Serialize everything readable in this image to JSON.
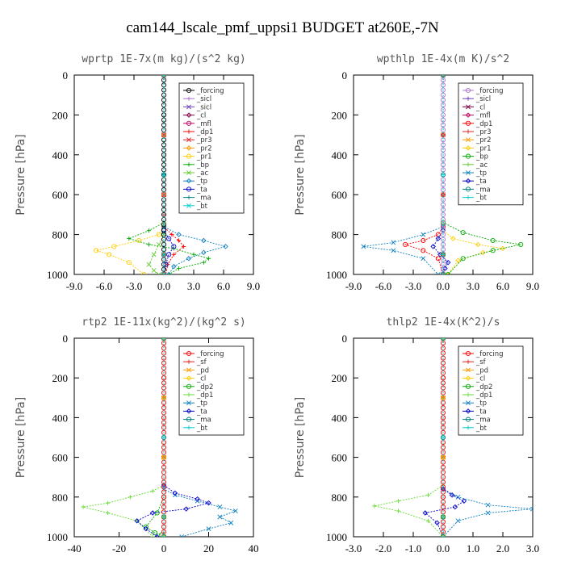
{
  "figure": {
    "title": "cam144_lscale_pmf_uppsi1  BUDGET at260E,-7N"
  },
  "chart_data": [
    {
      "type": "line",
      "title": "wprtp  1E-7x(m kg)/(s^2 kg)",
      "ylabel": "Pressure [hPa]",
      "xlim": [
        -9,
        9
      ],
      "ylim": [
        1000,
        0
      ],
      "xticks": [
        "-9.0",
        "-6.0",
        "-3.0",
        "0.0",
        "3.0",
        "6.0",
        "9.0"
      ],
      "xtick_values": [
        -9,
        -6,
        -3,
        0,
        3,
        6,
        9
      ],
      "yticks": [
        "0",
        "200",
        "400",
        "600",
        "800",
        "1000"
      ],
      "ytick_values": [
        0,
        200,
        400,
        600,
        800,
        1000
      ],
      "legend_position": "top-right",
      "series": [
        {
          "name": "_forcing",
          "color": "#000000",
          "x": [
            0,
            0,
            0,
            0,
            0,
            0,
            0
          ],
          "y": [
            0,
            200,
            400,
            600,
            800,
            900,
            1000
          ]
        },
        {
          "name": "_sicl",
          "color": "#b070d0",
          "x": [
            0,
            0,
            0,
            0,
            0
          ],
          "y": [
            0,
            300,
            600,
            900,
            1000
          ]
        },
        {
          "name": "_sicl",
          "color": "#7040c0",
          "x": [
            0,
            0,
            0,
            0,
            0
          ],
          "y": [
            0,
            300,
            600,
            900,
            1000
          ]
        },
        {
          "name": "_cl",
          "color": "#800040",
          "x": [
            0,
            0,
            0,
            0,
            0
          ],
          "y": [
            0,
            300,
            600,
            900,
            1000
          ]
        },
        {
          "name": "_mfl",
          "color": "#c00060",
          "x": [
            0,
            0,
            0,
            0,
            0
          ],
          "y": [
            0,
            300,
            600,
            900,
            1000
          ]
        },
        {
          "name": "_dp1",
          "color": "#ff0000",
          "x": [
            0,
            0,
            0,
            0.8,
            1.5,
            2.0,
            1.0,
            0.4,
            0.2
          ],
          "y": [
            0,
            700,
            760,
            800,
            830,
            860,
            900,
            950,
            1000
          ]
        },
        {
          "name": "_pr3",
          "color": "#e02020",
          "x": [
            0,
            0,
            0,
            0,
            0
          ],
          "y": [
            0,
            300,
            600,
            900,
            1000
          ]
        },
        {
          "name": "_pr2",
          "color": "#ff9900",
          "x": [
            0,
            0,
            0,
            0,
            0
          ],
          "y": [
            0,
            300,
            600,
            900,
            1000
          ]
        },
        {
          "name": "_pr1",
          "color": "#ffcc00",
          "x": [
            0,
            0,
            -0.5,
            -2.5,
            -5.0,
            -6.8,
            -5.5,
            -3.5,
            -2.0
          ],
          "y": [
            0,
            760,
            800,
            830,
            860,
            880,
            900,
            940,
            1000
          ]
        },
        {
          "name": "_bp",
          "color": "#00aa00",
          "x": [
            0,
            0,
            -1.5,
            -3.5,
            -1.5,
            1.0,
            3.0,
            4.5,
            4.0,
            1.5,
            0.5
          ],
          "y": [
            0,
            740,
            780,
            820,
            850,
            870,
            900,
            920,
            940,
            970,
            1000
          ]
        },
        {
          "name": "_ac",
          "color": "#66cc33",
          "x": [
            0,
            0,
            -0.5,
            -1.0,
            -1.5,
            -1.0,
            -0.5
          ],
          "y": [
            0,
            800,
            850,
            900,
            950,
            980,
            1000
          ]
        },
        {
          "name": "_tp",
          "color": "#1080c0",
          "x": [
            0,
            0,
            1.5,
            4.0,
            6.2,
            4.0,
            2.5,
            1.0,
            0.5
          ],
          "y": [
            0,
            760,
            800,
            830,
            860,
            890,
            920,
            960,
            1000
          ]
        },
        {
          "name": "_ta",
          "color": "#0000cc",
          "x": [
            0,
            0,
            0.5,
            1.0,
            0.5,
            0.2,
            0
          ],
          "y": [
            0,
            780,
            820,
            860,
            900,
            950,
            1000
          ]
        },
        {
          "name": "_ma",
          "color": "#008080",
          "x": [
            0,
            0,
            0,
            0
          ],
          "y": [
            0,
            500,
            900,
            1000
          ]
        },
        {
          "name": "_bt",
          "color": "#00cccc",
          "x": [
            0,
            0,
            0,
            0
          ],
          "y": [
            0,
            500,
            900,
            1000
          ]
        }
      ]
    },
    {
      "type": "line",
      "title": "wpthlp  1E-4x(m K)/s^2",
      "ylabel": "Pressure [hPa]",
      "xlim": [
        -9,
        9
      ],
      "ylim": [
        1000,
        0
      ],
      "xticks": [
        "-9.0",
        "-6.0",
        "-3.0",
        "0.0",
        "3.0",
        "6.0",
        "9.0"
      ],
      "xtick_values": [
        -9,
        -6,
        -3,
        0,
        3,
        6,
        9
      ],
      "yticks": [
        "0",
        "200",
        "400",
        "600",
        "800",
        "1000"
      ],
      "ytick_values": [
        0,
        200,
        400,
        600,
        800,
        1000
      ],
      "legend_position": "top-right",
      "series": [
        {
          "name": "_forcing",
          "color": "#b070d0",
          "x": [
            0,
            0,
            0,
            0,
            0
          ],
          "y": [
            0,
            300,
            600,
            900,
            1000
          ]
        },
        {
          "name": "_sicl",
          "color": "#7040c0",
          "x": [
            0,
            0,
            0,
            0,
            0
          ],
          "y": [
            0,
            300,
            600,
            900,
            1000
          ]
        },
        {
          "name": "_cl",
          "color": "#800040",
          "x": [
            0,
            0,
            0,
            0,
            0
          ],
          "y": [
            0,
            300,
            600,
            900,
            1000
          ]
        },
        {
          "name": "_mfl",
          "color": "#c00060",
          "x": [
            0,
            0,
            0,
            0,
            0
          ],
          "y": [
            0,
            300,
            600,
            900,
            1000
          ]
        },
        {
          "name": "_dp1",
          "color": "#ff0000",
          "x": [
            0,
            0,
            -0.5,
            -2.0,
            -3.8,
            -2.0,
            -0.5,
            0
          ],
          "y": [
            0,
            760,
            800,
            830,
            850,
            880,
            920,
            1000
          ]
        },
        {
          "name": "_pr3",
          "color": "#e02020",
          "x": [
            0,
            0,
            0,
            0,
            0
          ],
          "y": [
            0,
            300,
            600,
            900,
            1000
          ]
        },
        {
          "name": "_pr2",
          "color": "#ff9900",
          "x": [
            0,
            0,
            0,
            0,
            0
          ],
          "y": [
            0,
            300,
            600,
            900,
            1000
          ]
        },
        {
          "name": "_pr1",
          "color": "#ffcc00",
          "x": [
            0,
            0,
            1.0,
            3.5,
            6.0,
            4.0,
            1.5,
            0.5
          ],
          "y": [
            0,
            780,
            820,
            850,
            870,
            890,
            930,
            1000
          ]
        },
        {
          "name": "_bp",
          "color": "#00aa00",
          "x": [
            0,
            0,
            2.0,
            5.0,
            7.8,
            5.0,
            2.0,
            0.5
          ],
          "y": [
            0,
            740,
            790,
            830,
            850,
            880,
            920,
            1000
          ]
        },
        {
          "name": "_ac",
          "color": "#66cc33",
          "x": [
            0,
            0,
            0,
            0
          ],
          "y": [
            0,
            500,
            900,
            1000
          ]
        },
        {
          "name": "_tp",
          "color": "#1080c0",
          "x": [
            0,
            0,
            -2.0,
            -5.0,
            -8.0,
            -5.0,
            -2.0,
            -0.5
          ],
          "y": [
            0,
            760,
            800,
            840,
            860,
            880,
            920,
            1000
          ]
        },
        {
          "name": "_ta",
          "color": "#0000cc",
          "x": [
            0,
            0,
            -0.5,
            -1.0,
            -0.3,
            0.5,
            0.2,
            0
          ],
          "y": [
            0,
            780,
            820,
            860,
            900,
            940,
            970,
            1000
          ]
        },
        {
          "name": "_ma",
          "color": "#008080",
          "x": [
            0,
            0,
            0,
            0
          ],
          "y": [
            0,
            500,
            900,
            1000
          ]
        },
        {
          "name": "_bt",
          "color": "#00cccc",
          "x": [
            0,
            0,
            0,
            0
          ],
          "y": [
            0,
            500,
            900,
            1000
          ]
        }
      ]
    },
    {
      "type": "line",
      "title": "rtp2  1E-11x(kg^2)/(kg^2 s)",
      "ylabel": "Pressure [hPa]",
      "xlim": [
        -40,
        40
      ],
      "ylim": [
        1000,
        0
      ],
      "xticks": [
        "-40",
        "-20",
        "0",
        "20",
        "40"
      ],
      "xtick_values": [
        -40,
        -20,
        0,
        20,
        40
      ],
      "yticks": [
        "0",
        "200",
        "400",
        "600",
        "800",
        "1000"
      ],
      "ytick_values": [
        0,
        200,
        400,
        600,
        800,
        1000
      ],
      "legend_position": "top-right",
      "series": [
        {
          "name": "_forcing",
          "color": "#ff0000",
          "x": [
            0,
            0,
            0,
            0,
            0,
            0,
            0
          ],
          "y": [
            0,
            200,
            400,
            600,
            800,
            900,
            1000
          ]
        },
        {
          "name": "_sf",
          "color": "#e02020",
          "x": [
            0,
            0,
            0,
            0,
            0
          ],
          "y": [
            0,
            300,
            600,
            900,
            1000
          ]
        },
        {
          "name": "_pd",
          "color": "#ff9900",
          "x": [
            0,
            0,
            0,
            0,
            0
          ],
          "y": [
            0,
            300,
            600,
            900,
            1000
          ]
        },
        {
          "name": "_cl",
          "color": "#ffcc00",
          "x": [
            0,
            0,
            0,
            0,
            0
          ],
          "y": [
            0,
            300,
            600,
            900,
            1000
          ]
        },
        {
          "name": "_dp2",
          "color": "#00aa00",
          "x": [
            0,
            0,
            -3,
            -8,
            -4,
            -1,
            0
          ],
          "y": [
            0,
            800,
            880,
            950,
            980,
            990,
            1000
          ]
        },
        {
          "name": "_dp1",
          "color": "#66dd33",
          "x": [
            0,
            0,
            -5,
            -15,
            -25,
            -36,
            -25,
            -12,
            -5
          ],
          "y": [
            0,
            740,
            770,
            800,
            830,
            850,
            880,
            920,
            1000
          ]
        },
        {
          "name": "_tp",
          "color": "#1080c0",
          "x": [
            0,
            0,
            5,
            15,
            25,
            32,
            25,
            30,
            20,
            8
          ],
          "y": [
            0,
            760,
            790,
            820,
            850,
            870,
            900,
            930,
            960,
            1000
          ]
        },
        {
          "name": "_ta",
          "color": "#0000cc",
          "x": [
            0,
            0,
            5,
            15,
            20,
            10,
            -5,
            -12,
            -8,
            -3
          ],
          "y": [
            0,
            740,
            780,
            810,
            830,
            860,
            880,
            920,
            960,
            1000
          ]
        },
        {
          "name": "_ma",
          "color": "#008080",
          "x": [
            0,
            0,
            0,
            0
          ],
          "y": [
            0,
            500,
            900,
            1000
          ]
        },
        {
          "name": "_bt",
          "color": "#00cccc",
          "x": [
            0,
            0,
            0,
            0
          ],
          "y": [
            0,
            500,
            900,
            1000
          ]
        }
      ]
    },
    {
      "type": "line",
      "title": "thlp2  1E-4x(K^2)/s",
      "ylabel": "Pressure [hPa]",
      "xlim": [
        -3,
        3
      ],
      "ylim": [
        1000,
        0
      ],
      "xticks": [
        "-3.0",
        "-2.0",
        "-1.0",
        "0.0",
        "1.0",
        "2.0",
        "3.0"
      ],
      "xtick_values": [
        -3,
        -2,
        -1,
        0,
        1,
        2,
        3
      ],
      "yticks": [
        "0",
        "200",
        "400",
        "600",
        "800",
        "1000"
      ],
      "ytick_values": [
        0,
        200,
        400,
        600,
        800,
        1000
      ],
      "legend_position": "top-right",
      "series": [
        {
          "name": "_forcing",
          "color": "#ff0000",
          "x": [
            0,
            0,
            0,
            0,
            0,
            0,
            0
          ],
          "y": [
            0,
            200,
            400,
            600,
            800,
            900,
            1000
          ]
        },
        {
          "name": "_sf",
          "color": "#e02020",
          "x": [
            0,
            0,
            0,
            0,
            0
          ],
          "y": [
            0,
            300,
            600,
            900,
            1000
          ]
        },
        {
          "name": "_pd",
          "color": "#ff9900",
          "x": [
            0,
            0,
            0,
            0,
            0
          ],
          "y": [
            0,
            300,
            600,
            900,
            1000
          ]
        },
        {
          "name": "_cl",
          "color": "#ffcc00",
          "x": [
            0,
            0,
            0,
            0,
            0
          ],
          "y": [
            0,
            300,
            600,
            900,
            1000
          ]
        },
        {
          "name": "_dp2",
          "color": "#00aa00",
          "x": [
            0,
            0,
            0,
            0
          ],
          "y": [
            0,
            500,
            900,
            1000
          ]
        },
        {
          "name": "_dp1",
          "color": "#66dd33",
          "x": [
            0,
            0,
            -0.5,
            -1.5,
            -2.3,
            -1.5,
            -0.5,
            0
          ],
          "y": [
            0,
            740,
            790,
            820,
            845,
            870,
            920,
            1000
          ]
        },
        {
          "name": "_tp",
          "color": "#1080c0",
          "x": [
            0,
            0,
            0.5,
            1.5,
            3.0,
            1.5,
            0.5,
            0
          ],
          "y": [
            0,
            760,
            800,
            840,
            860,
            880,
            920,
            1000
          ]
        },
        {
          "name": "_ta",
          "color": "#0000cc",
          "x": [
            0,
            0,
            0.3,
            0.7,
            0.4,
            -0.6,
            -0.2,
            0
          ],
          "y": [
            0,
            760,
            790,
            820,
            850,
            880,
            930,
            1000
          ]
        },
        {
          "name": "_ma",
          "color": "#008080",
          "x": [
            0,
            0,
            0,
            0
          ],
          "y": [
            0,
            500,
            900,
            1000
          ]
        },
        {
          "name": "_bt",
          "color": "#00cccc",
          "x": [
            0,
            0,
            0,
            0
          ],
          "y": [
            0,
            500,
            900,
            1000
          ]
        }
      ]
    }
  ]
}
